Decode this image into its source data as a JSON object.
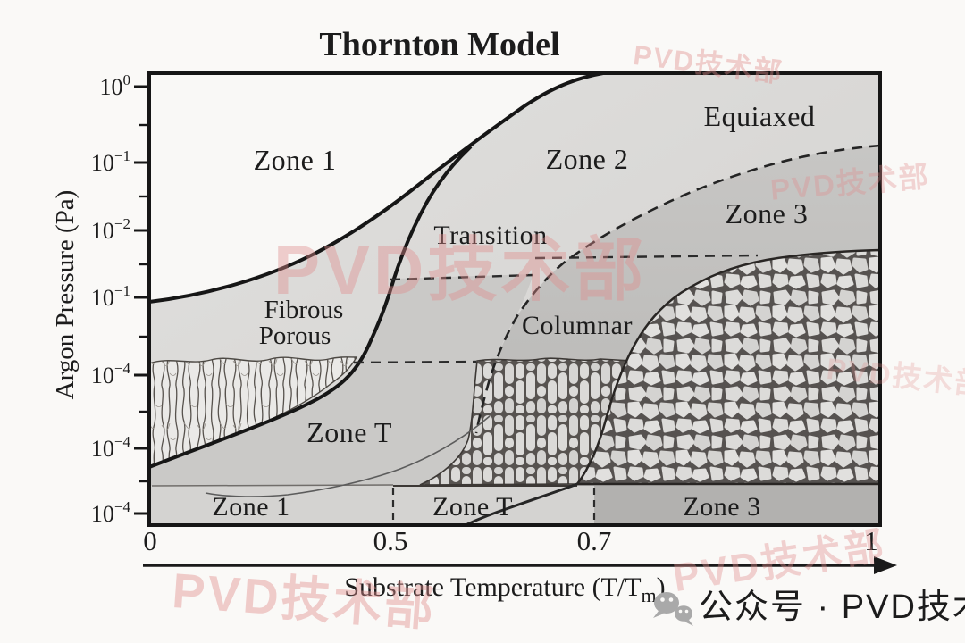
{
  "title": "Thornton Model",
  "yaxis": {
    "label": "Argon Pressure (Pa)",
    "ticks": [
      "10^0",
      "10^-1",
      "10^-2",
      "10^-1",
      "10^-4",
      "10^-4",
      "10^-4"
    ]
  },
  "xaxis": {
    "label_main": "Substrate Temperature (T/T",
    "label_sub": "m",
    "label_close": ")",
    "ticks": [
      "0",
      "0.5",
      "0.7",
      "1"
    ]
  },
  "regions": {
    "zone1_upper": "Zone 1",
    "zone2": "Zone 2",
    "equiaxed": "Equiaxed",
    "zone3": "Zone 3",
    "transition": "Transition",
    "fibrous_line1": "Fibrous",
    "fibrous_line2": "Porous",
    "columnar": "Columnar",
    "zoneT": "Zone T"
  },
  "substrate_band": {
    "zone1": "Zone 1",
    "zoneT": "Zone T",
    "zone3": "Zone 3"
  },
  "watermark": {
    "text": "PVD技术部"
  },
  "footer": {
    "wechat_label": "公众号 · PVD技术部"
  },
  "colors": {
    "ink": "#1a1a1a",
    "watermark_pink": "#e08c8c",
    "footer_gray": "#ababab",
    "zone1_white": "#f9f8f6",
    "zone2_gray": "#dcdbd9",
    "zoneT_gray": "#cac9c7",
    "zone3_gray": "#c0bfbd",
    "band_dark": "#b2b1af"
  }
}
